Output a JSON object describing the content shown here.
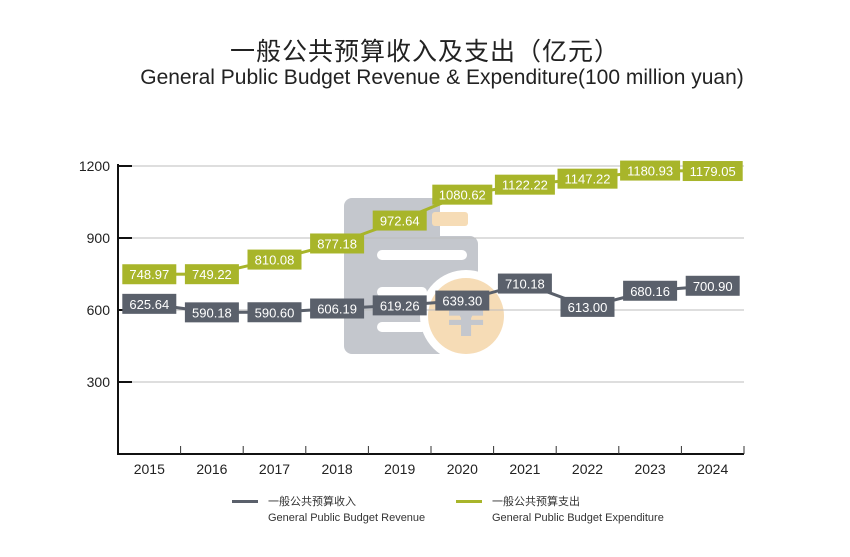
{
  "title_cn": "一般公共预算收入及支出（亿元）",
  "title_en": "General Public Budget Revenue & Expenditure(100 million yuan)",
  "colors": {
    "revenue": "#5a606b",
    "expenditure": "#a8b52a",
    "icon_doc": "#c4c7cd",
    "icon_coin": "#f6dcb6"
  },
  "legend": [
    {
      "cn": "一般公共预算收入",
      "en": "General Public Budget Revenue"
    },
    {
      "cn": "一般公共预算支出",
      "en": "General Public Budget Expenditure"
    }
  ],
  "chart_data": {
    "type": "line",
    "title": "一般公共预算收入及支出（亿元） General Public Budget Revenue & Expenditure(100 million yuan)",
    "xlabel": "",
    "ylabel": "",
    "categories": [
      "2015",
      "2016",
      "2017",
      "2018",
      "2019",
      "2020",
      "2021",
      "2022",
      "2023",
      "2024"
    ],
    "yticks": [
      300,
      600,
      900,
      1200
    ],
    "ylim": [
      0,
      1200
    ],
    "grid": true,
    "legend_position": "bottom",
    "series": [
      {
        "name": "一般公共预算收入 General Public Budget Revenue",
        "key": "revenue",
        "values": [
          625.64,
          590.18,
          590.6,
          606.19,
          619.26,
          639.3,
          710.18,
          613.0,
          680.16,
          700.9
        ],
        "labels": [
          "625.64",
          "590.18",
          "590.60",
          "606.19",
          "619.26",
          "639.30",
          "710.18",
          "613.00",
          "680.16",
          "700.90"
        ]
      },
      {
        "name": "一般公共预算支出 General Public Budget Expenditure",
        "key": "expenditure",
        "values": [
          748.97,
          749.22,
          810.08,
          877.18,
          972.64,
          1080.62,
          1122.22,
          1147.22,
          1180.93,
          1179.05
        ],
        "labels": [
          "748.97",
          "749.22",
          "810.08",
          "877.18",
          "972.64",
          "1080.62",
          "1122.22",
          "1147.22",
          "1180.93",
          "1179.05"
        ]
      }
    ]
  }
}
